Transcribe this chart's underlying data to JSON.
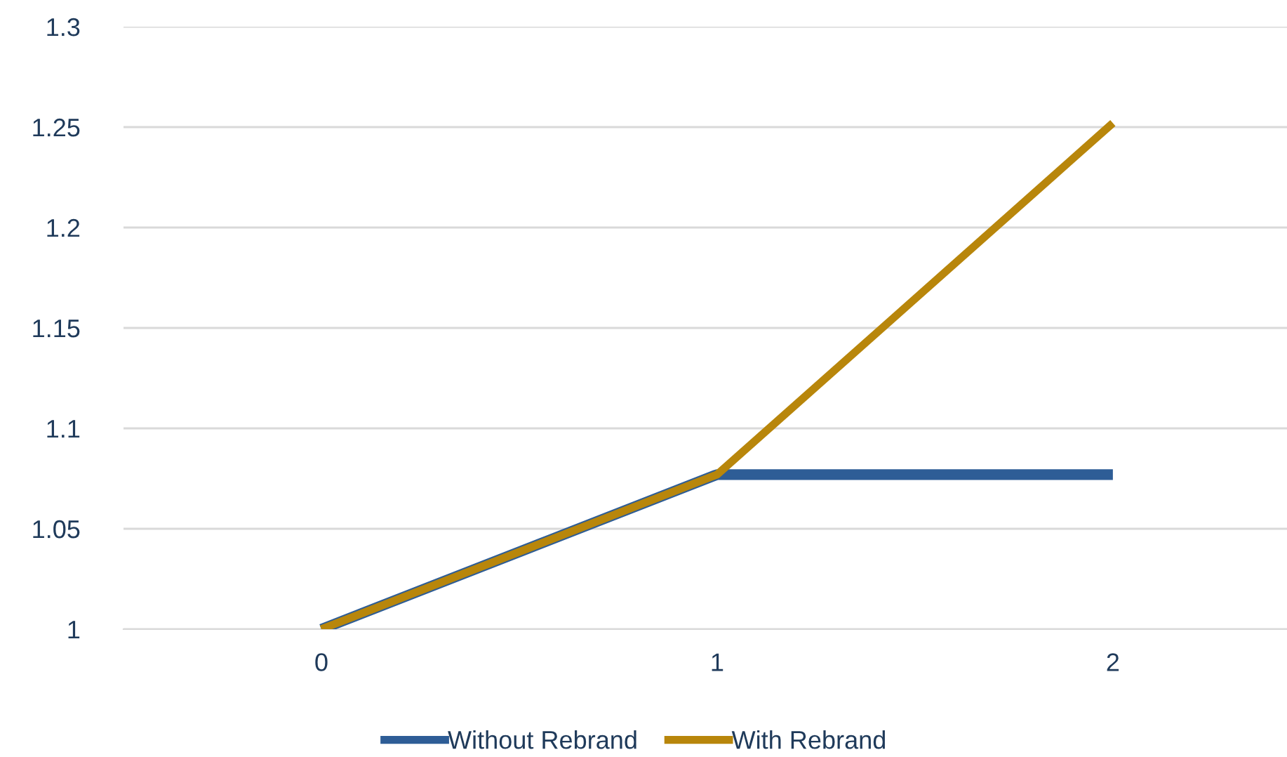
{
  "chart_data": {
    "type": "line",
    "categories": [
      "0",
      "1",
      "2"
    ],
    "series": [
      {
        "name": "Without Rebrand",
        "color": "#2e5d96",
        "values": [
          1,
          1.077,
          1.077
        ]
      },
      {
        "name": "With Rebrand",
        "color": "#b8860b",
        "values": [
          1,
          1.077,
          1.252
        ]
      }
    ],
    "ylim": [
      1,
      1.3
    ],
    "yticks": [
      1,
      1.05,
      1.1,
      1.15,
      1.2,
      1.25,
      1.3
    ],
    "grid": "y",
    "legend": "bottom",
    "marker": "none",
    "line_style": "solid"
  }
}
